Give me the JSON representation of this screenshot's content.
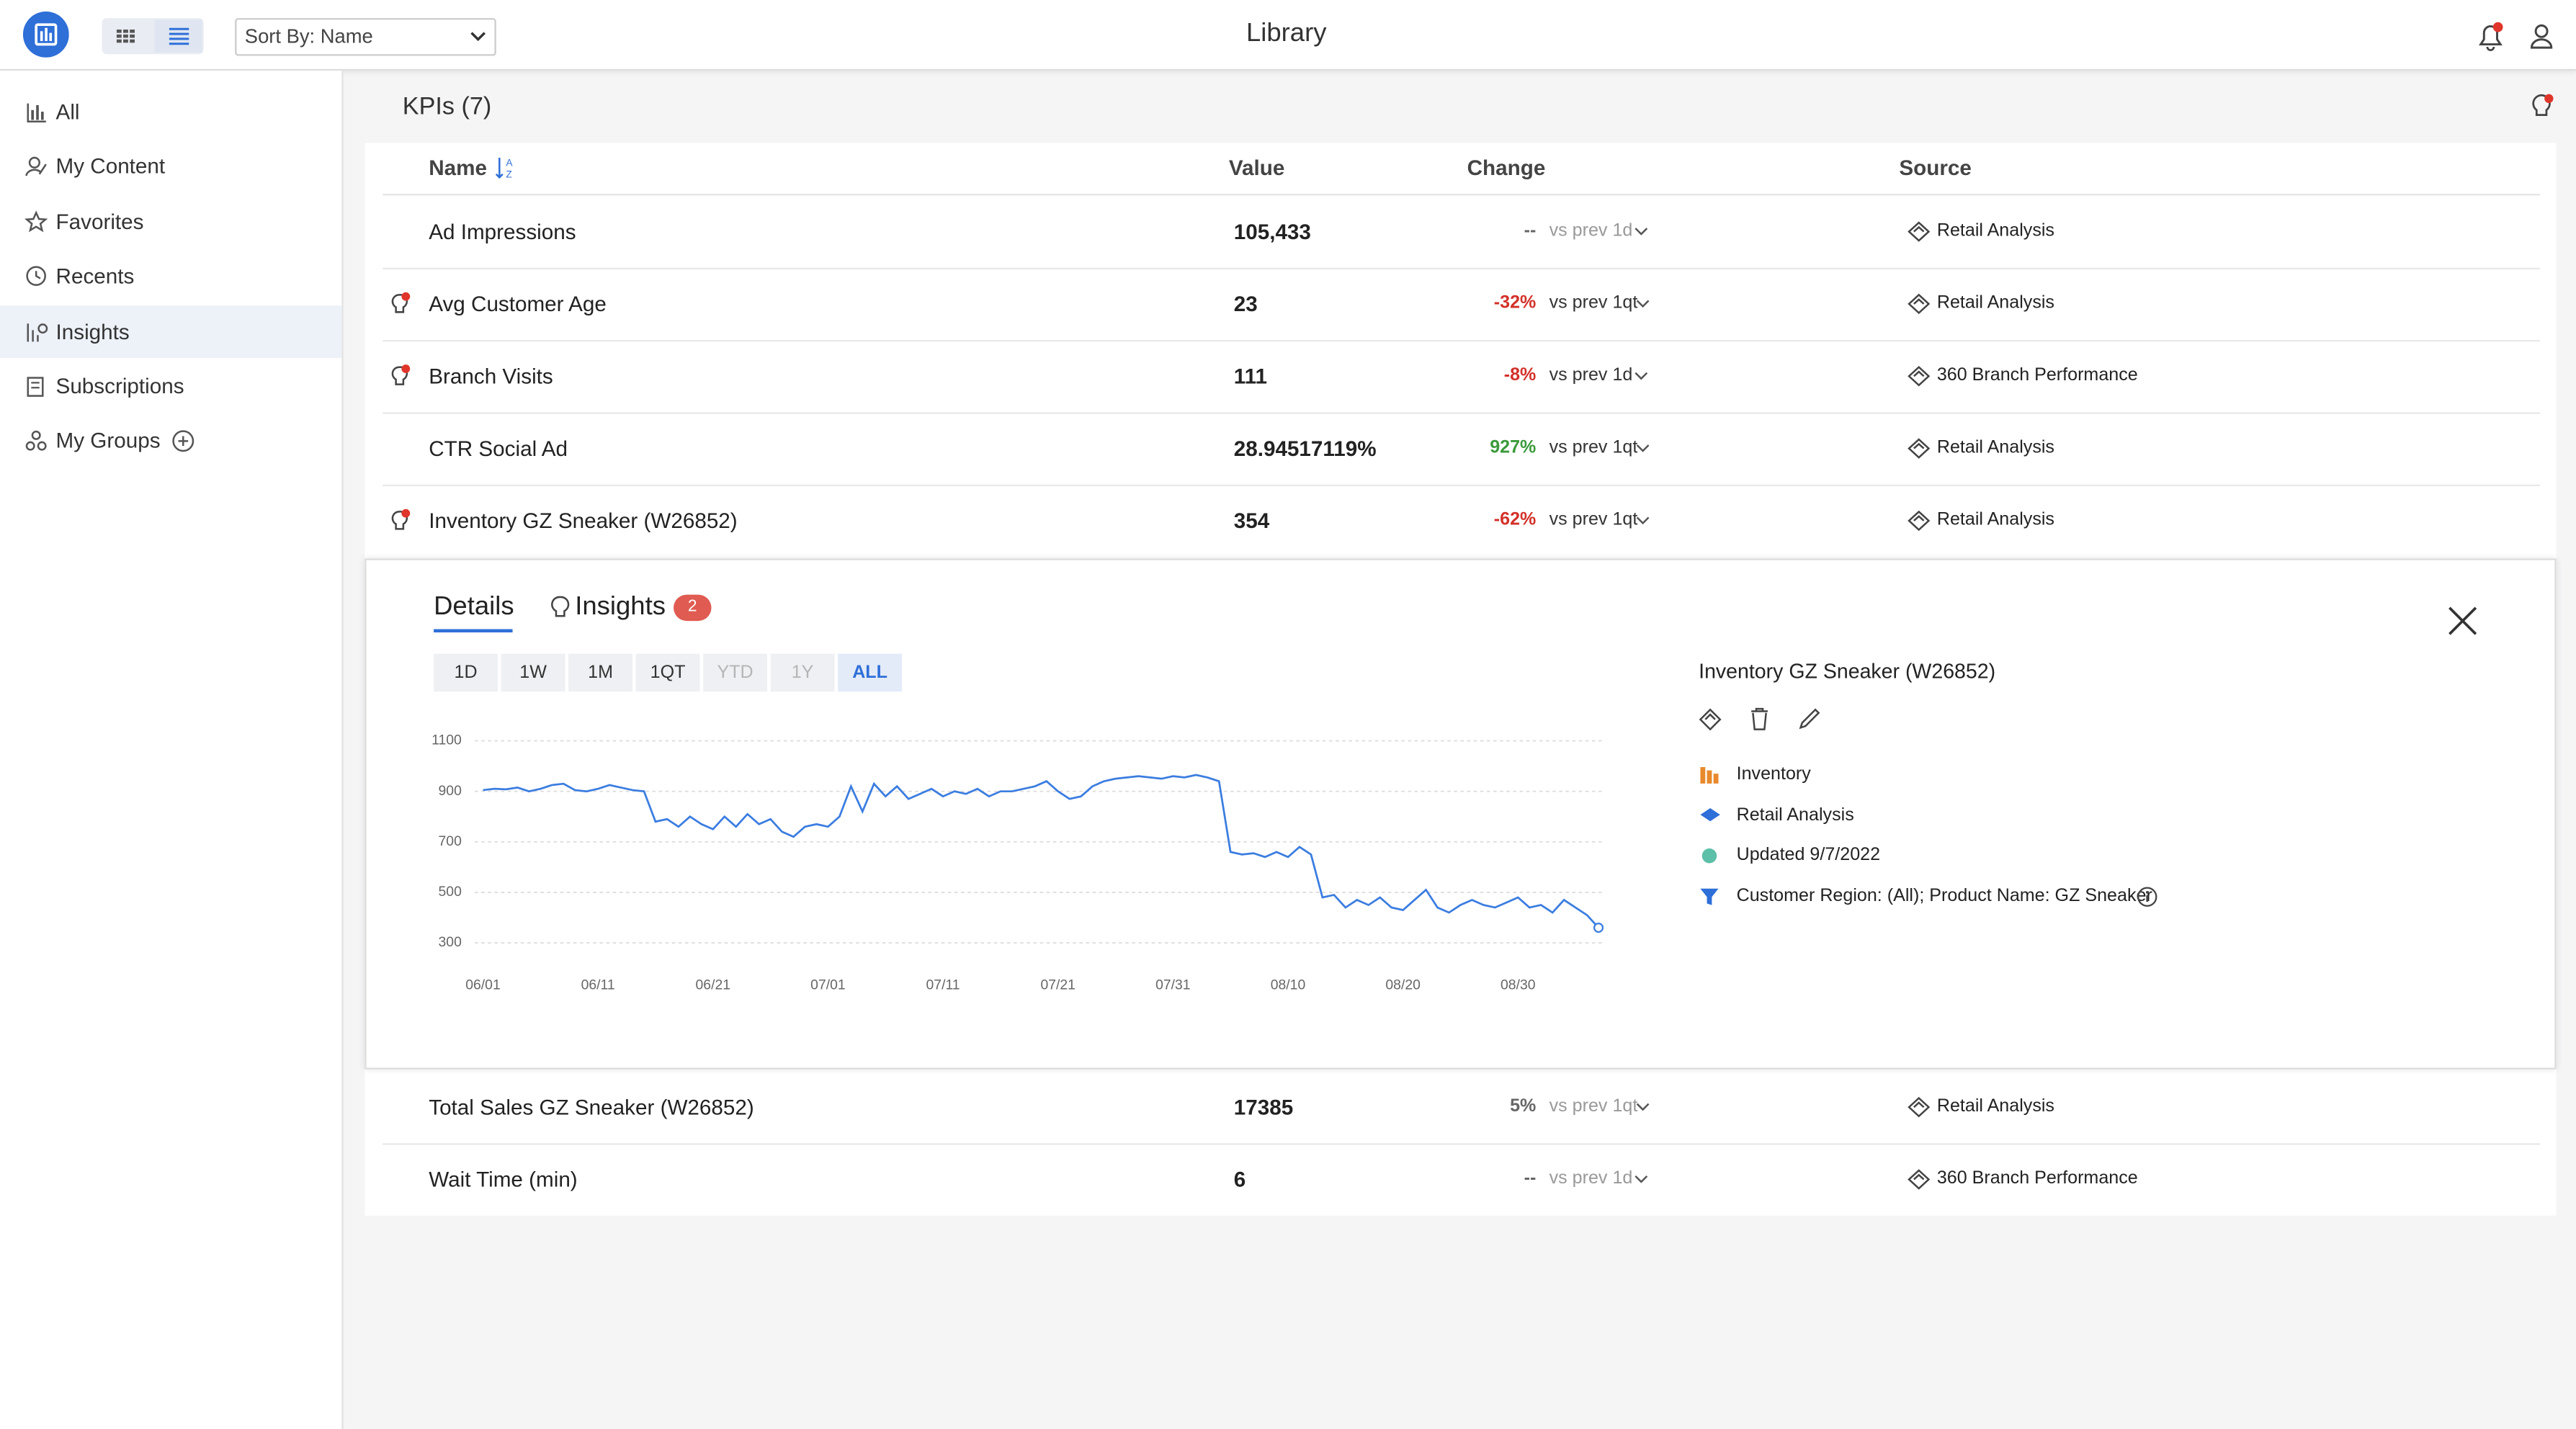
{
  "header": {
    "title": "Library",
    "sort": "Sort By: Name"
  },
  "sidebar": {
    "items": [
      "All",
      "My Content",
      "Favorites",
      "Recents",
      "Insights",
      "Subscriptions",
      "My Groups"
    ],
    "active": 4
  },
  "kpis": {
    "title": "KPIs (7)",
    "columns": [
      "Name",
      "Value",
      "Change",
      "Source"
    ],
    "rows": [
      {
        "name": "Ad Impressions",
        "value": "105,433",
        "change": "--",
        "period": "vs prev 1d",
        "source": "Retail Analysis",
        "insight": false
      },
      {
        "name": "Avg Customer Age",
        "value": "23",
        "change": "-32%",
        "period": "vs prev 1qt",
        "source": "Retail Analysis",
        "insight": true
      },
      {
        "name": "Branch Visits",
        "value": "111",
        "change": "-8%",
        "period": "vs prev 1d",
        "source": "360 Branch Performance",
        "insight": true
      },
      {
        "name": "CTR Social Ad",
        "value": "28.94517119%",
        "change": "927%",
        "period": "vs prev 1qt",
        "source": "Retail Analysis",
        "insight": false
      },
      {
        "name": "Inventory GZ Sneaker (W26852)",
        "value": "354",
        "change": "-62%",
        "period": "vs prev 1qt",
        "source": "Retail Analysis",
        "insight": true
      },
      {
        "name": "Total Sales GZ Sneaker (W26852)",
        "value": "17385",
        "change": "5%",
        "period": "vs prev 1qt",
        "source": "Retail Analysis",
        "insight": false
      },
      {
        "name": "Wait Time (min)",
        "value": "6",
        "change": "--",
        "period": "vs prev 1d",
        "source": "360 Branch Performance",
        "insight": false
      }
    ]
  },
  "detail": {
    "tabs": [
      "Details",
      "Insights"
    ],
    "insight_count": 2,
    "ranges": [
      "1D",
      "1W",
      "1M",
      "1QT",
      "YTD",
      "1Y",
      "ALL"
    ],
    "active_range": 6,
    "disabled_ranges": [
      4,
      5
    ],
    "title": "Inventory GZ Sneaker (W26852)",
    "meta": [
      "Inventory",
      "Retail Analysis",
      "Updated 9/7/2022",
      "Customer Region: (All); Product Name: GZ Sneaker"
    ]
  },
  "chart_data": {
    "type": "line",
    "color": "#3b7de0",
    "x": [
      "06/01",
      "06/02",
      "06/03",
      "06/04",
      "06/05",
      "06/06",
      "06/07",
      "06/08",
      "06/09",
      "06/10",
      "06/11",
      "06/12",
      "06/13",
      "06/14",
      "06/15",
      "06/16",
      "06/17",
      "06/18",
      "06/19",
      "06/20",
      "06/21",
      "06/22",
      "06/23",
      "06/24",
      "06/25",
      "06/26",
      "06/27",
      "06/28",
      "06/29",
      "06/30",
      "07/01",
      "07/02",
      "07/03",
      "07/04",
      "07/05",
      "07/06",
      "07/07",
      "07/08",
      "07/09",
      "07/10",
      "07/11",
      "07/12",
      "07/13",
      "07/14",
      "07/15",
      "07/16",
      "07/17",
      "07/18",
      "07/19",
      "07/20",
      "07/21",
      "07/22",
      "07/23",
      "07/24",
      "07/25",
      "07/26",
      "07/27",
      "07/28",
      "07/29",
      "07/30",
      "07/31",
      "08/01",
      "08/02",
      "08/03",
      "08/04",
      "08/05",
      "08/06",
      "08/07",
      "08/08",
      "08/09",
      "08/10",
      "08/11",
      "08/12",
      "08/13",
      "08/14",
      "08/15",
      "08/16",
      "08/17",
      "08/18",
      "08/19",
      "08/20",
      "08/21",
      "08/22",
      "08/23",
      "08/24",
      "08/25",
      "08/26",
      "08/27",
      "08/28",
      "08/29",
      "08/30",
      "08/31",
      "09/01",
      "09/02",
      "09/03",
      "09/04",
      "09/05",
      "09/06"
    ],
    "values": [
      905,
      910,
      908,
      915,
      900,
      910,
      925,
      930,
      905,
      900,
      910,
      925,
      915,
      905,
      900,
      780,
      790,
      760,
      800,
      770,
      750,
      800,
      760,
      810,
      770,
      790,
      740,
      720,
      760,
      770,
      760,
      800,
      920,
      820,
      930,
      880,
      920,
      870,
      890,
      910,
      880,
      900,
      890,
      910,
      880,
      900,
      900,
      910,
      920,
      940,
      900,
      870,
      880,
      920,
      940,
      950,
      955,
      960,
      955,
      950,
      960,
      955,
      965,
      955,
      940,
      660,
      650,
      655,
      640,
      660,
      640,
      680,
      650,
      480,
      490,
      440,
      470,
      450,
      480,
      440,
      430,
      470,
      510,
      440,
      420,
      450,
      470,
      450,
      440,
      460,
      480,
      440,
      450,
      420,
      470,
      440,
      410,
      360
    ],
    "ylim": [
      300,
      1100
    ],
    "yticks": [
      300,
      500,
      700,
      900,
      1100
    ],
    "xticks": [
      "06/01",
      "06/11",
      "06/21",
      "07/01",
      "07/11",
      "07/21",
      "07/31",
      "08/10",
      "08/20",
      "08/30"
    ],
    "grid": true
  }
}
